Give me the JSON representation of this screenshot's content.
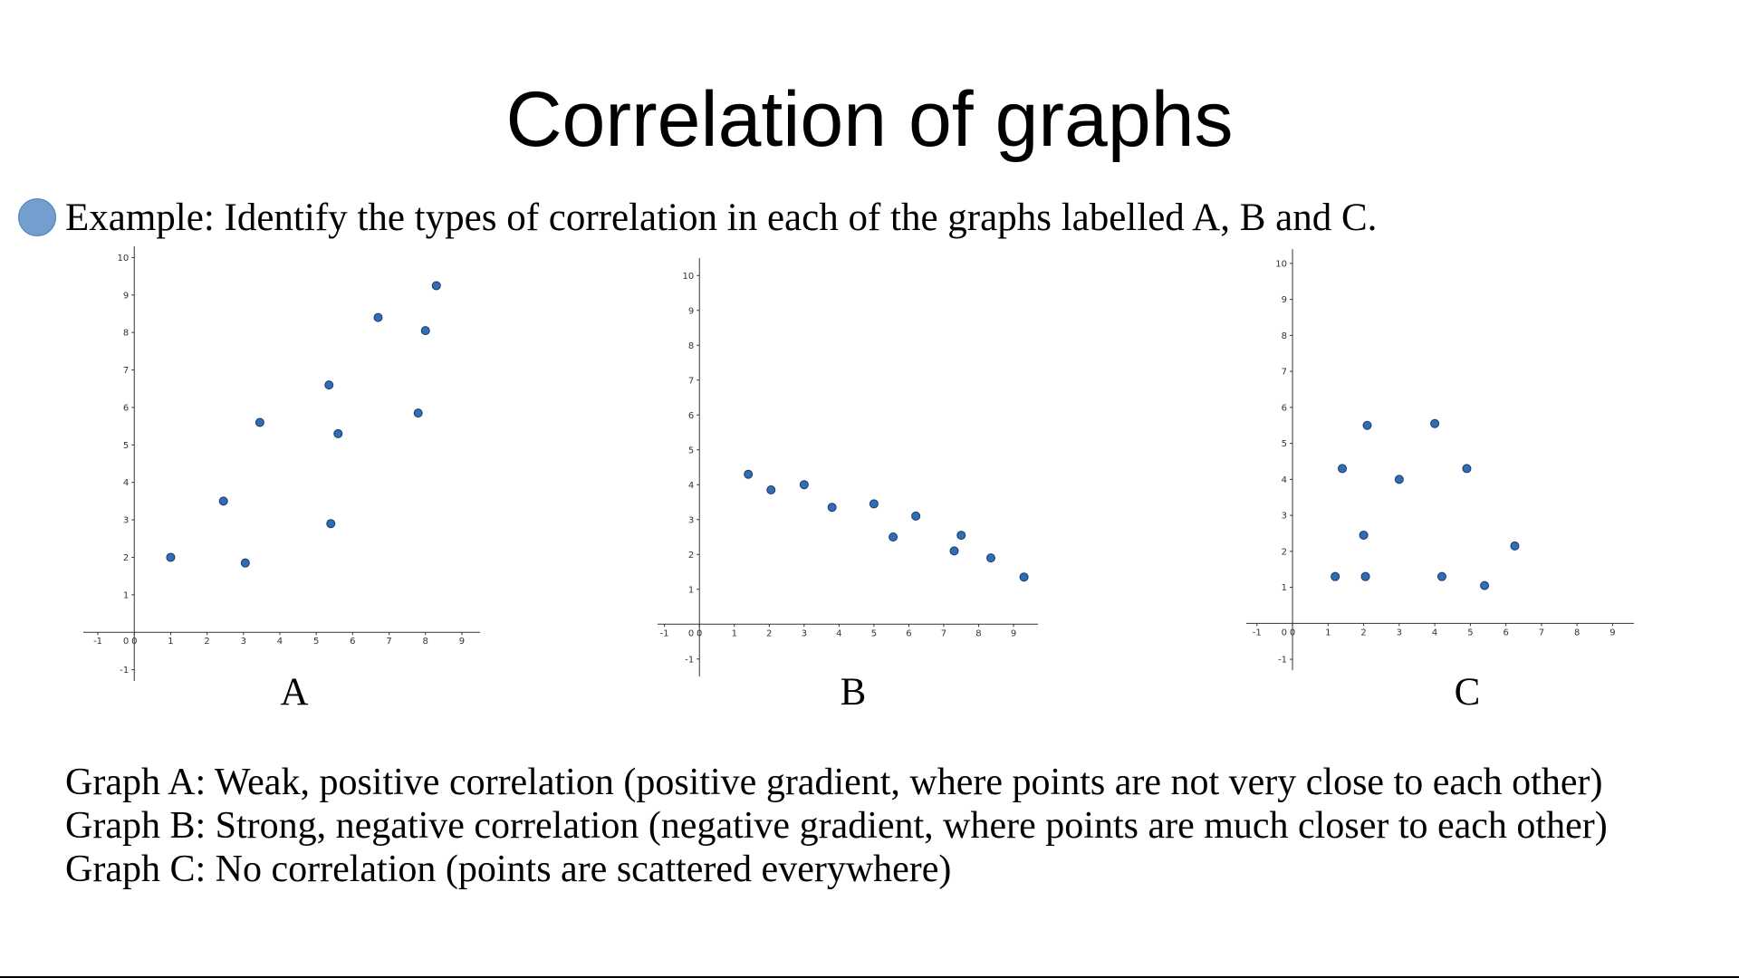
{
  "title": "Correlation of graphs",
  "bullet": "Example: Identify the types of correlation in each of the graphs labelled A, B and C.",
  "answers": [
    "Graph A: Weak, positive correlation (positive gradient, where points are not very close to each other)",
    "Graph B: Strong, negative correlation (negative gradient, where points are much closer to each other)",
    "Graph C: No correlation (points are scattered everywhere)"
  ],
  "colors": {
    "point_fill": "#2f6db5",
    "point_stroke": "#1a3a66",
    "bullet": "#729fcf"
  },
  "chart_data": [
    {
      "type": "scatter",
      "label": "A",
      "title": "",
      "xlabel": "",
      "ylabel": "",
      "xlim": [
        -1.4,
        9.5
      ],
      "ylim": [
        -1.3,
        10.3
      ],
      "xticks": [
        -1,
        0,
        1,
        2,
        3,
        4,
        5,
        6,
        7,
        8,
        9
      ],
      "yticks": [
        -1,
        1,
        2,
        3,
        4,
        5,
        6,
        7,
        8,
        9,
        10
      ],
      "grid": false,
      "points": [
        {
          "x": 1.0,
          "y": 2.0
        },
        {
          "x": 2.45,
          "y": 3.5
        },
        {
          "x": 3.05,
          "y": 1.85
        },
        {
          "x": 3.45,
          "y": 5.6
        },
        {
          "x": 5.35,
          "y": 6.6
        },
        {
          "x": 5.4,
          "y": 2.9
        },
        {
          "x": 5.6,
          "y": 5.3
        },
        {
          "x": 6.7,
          "y": 8.4
        },
        {
          "x": 7.8,
          "y": 5.85
        },
        {
          "x": 8.0,
          "y": 8.05
        },
        {
          "x": 8.3,
          "y": 9.25
        }
      ]
    },
    {
      "type": "scatter",
      "label": "B",
      "title": "",
      "xlabel": "",
      "ylabel": "",
      "xlim": [
        -1.2,
        9.7
      ],
      "ylim": [
        -1.5,
        10.5
      ],
      "xticks": [
        -1,
        0,
        1,
        2,
        3,
        4,
        5,
        6,
        7,
        8,
        9
      ],
      "yticks": [
        -1,
        1,
        2,
        3,
        4,
        5,
        6,
        7,
        8,
        9,
        10
      ],
      "grid": false,
      "points": [
        {
          "x": 1.4,
          "y": 4.3
        },
        {
          "x": 2.05,
          "y": 3.85
        },
        {
          "x": 3.0,
          "y": 4.0
        },
        {
          "x": 3.8,
          "y": 3.35
        },
        {
          "x": 5.0,
          "y": 3.45
        },
        {
          "x": 5.55,
          "y": 2.5
        },
        {
          "x": 6.2,
          "y": 3.1
        },
        {
          "x": 7.3,
          "y": 2.1
        },
        {
          "x": 7.5,
          "y": 2.55
        },
        {
          "x": 8.35,
          "y": 1.9
        },
        {
          "x": 9.3,
          "y": 1.35
        }
      ]
    },
    {
      "type": "scatter",
      "label": "C",
      "title": "",
      "xlabel": "",
      "ylabel": "",
      "xlim": [
        -1.3,
        9.6
      ],
      "ylim": [
        -1.3,
        10.4
      ],
      "xticks": [
        -1,
        0,
        1,
        2,
        3,
        4,
        5,
        6,
        7,
        8,
        9
      ],
      "yticks": [
        -1,
        1,
        2,
        3,
        4,
        5,
        6,
        7,
        8,
        9,
        10
      ],
      "grid": false,
      "points": [
        {
          "x": 1.2,
          "y": 1.3
        },
        {
          "x": 1.4,
          "y": 4.3
        },
        {
          "x": 2.0,
          "y": 2.45
        },
        {
          "x": 2.05,
          "y": 1.3
        },
        {
          "x": 2.1,
          "y": 5.5
        },
        {
          "x": 3.0,
          "y": 4.0
        },
        {
          "x": 4.0,
          "y": 5.55
        },
        {
          "x": 4.2,
          "y": 1.3
        },
        {
          "x": 4.9,
          "y": 4.3
        },
        {
          "x": 5.4,
          "y": 1.05
        },
        {
          "x": 6.25,
          "y": 2.15
        }
      ]
    }
  ]
}
